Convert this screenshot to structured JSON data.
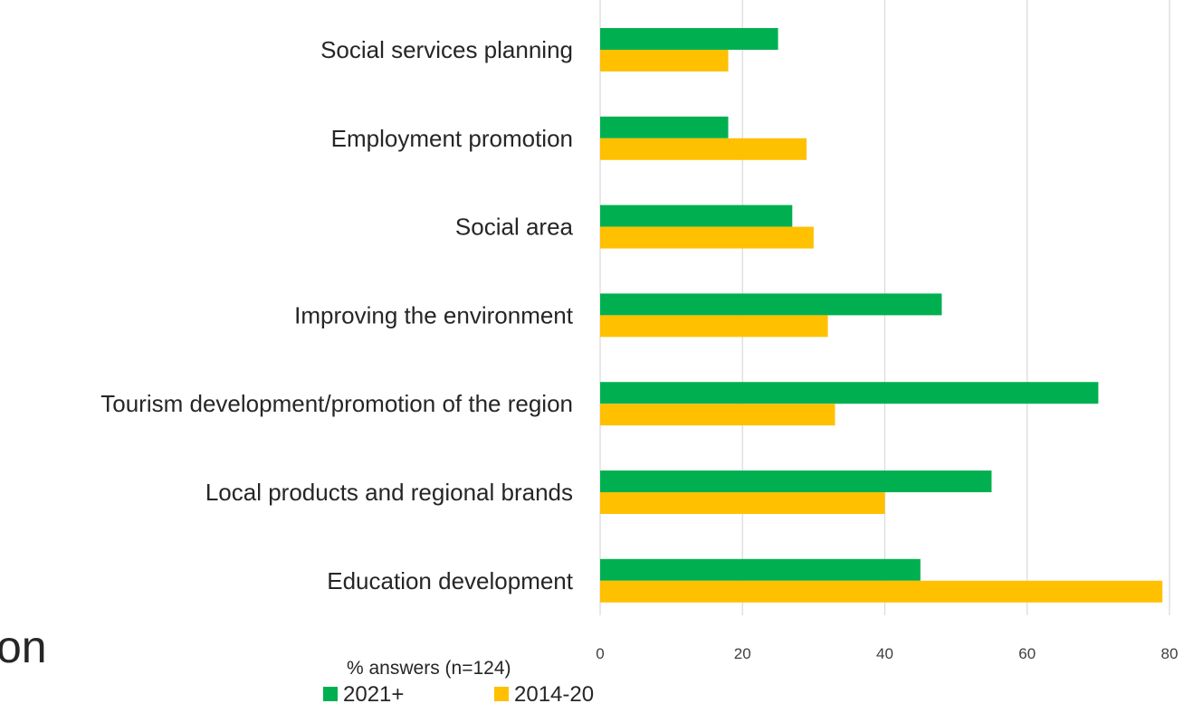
{
  "chart_data": {
    "type": "bar",
    "orientation": "horizontal",
    "categories": [
      "Social services planning",
      "Employment promotion",
      "Social area",
      "Improving the environment",
      "Tourism development/promotion of the region",
      "Local products and regional brands",
      "Education development"
    ],
    "series": [
      {
        "name": "2021+",
        "color": "#00b050",
        "values": [
          25,
          18,
          27,
          48,
          70,
          55,
          45
        ]
      },
      {
        "name": "2014-20",
        "color": "#ffc000",
        "values": [
          18,
          29,
          30,
          32,
          33,
          40,
          79
        ]
      }
    ],
    "xlabel": "% answers (n=124)",
    "ylabel": "",
    "xlim": [
      0,
      80
    ],
    "xticks": [
      "0",
      "20",
      "40",
      "60",
      "80"
    ],
    "grid": true,
    "legend_position": "bottom"
  },
  "page_fragment": "on"
}
